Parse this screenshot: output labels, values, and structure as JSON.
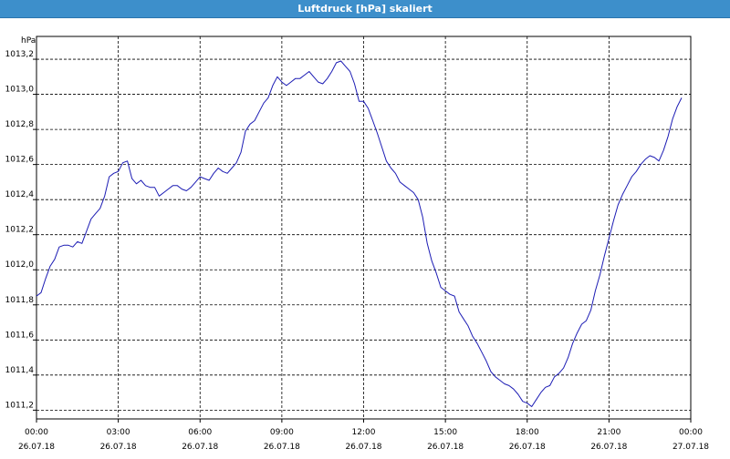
{
  "window": {
    "title": "Luftdruck [hPa] skaliert"
  },
  "colors": {
    "titlebar": "#3d8fcb",
    "line": "#1c1cb4",
    "grid": "#000000"
  },
  "chart_data": {
    "type": "line",
    "title": "Luftdruck [hPa] skaliert",
    "ylabel": "hPa",
    "xlabel": "",
    "grid": true,
    "legend": "none",
    "ylim": [
      1011.15,
      1013.33
    ],
    "xlim": [
      "26.07.18 00:00",
      "27.07.18 00:00"
    ],
    "yticks": [
      "1011,2",
      "1011,4",
      "1011,6",
      "1011,8",
      "1012,0",
      "1012,2",
      "1012,4",
      "1012,6",
      "1012,8",
      "1013,0",
      "1013,2"
    ],
    "xticks": [
      {
        "time": "00:00",
        "date": "26.07.18"
      },
      {
        "time": "03:00",
        "date": "26.07.18"
      },
      {
        "time": "06:00",
        "date": "26.07.18"
      },
      {
        "time": "09:00",
        "date": "26.07.18"
      },
      {
        "time": "12:00",
        "date": "26.07.18"
      },
      {
        "time": "15:00",
        "date": "26.07.18"
      },
      {
        "time": "18:00",
        "date": "26.07.18"
      },
      {
        "time": "21:00",
        "date": "26.07.18"
      },
      {
        "time": "00:00",
        "date": "27.07.18"
      }
    ],
    "series": [
      {
        "values": [
          [
            "00:00",
            1011.85
          ],
          [
            "00:10",
            1011.87
          ],
          [
            "00:20",
            1011.95
          ],
          [
            "00:30",
            1012.02
          ],
          [
            "00:40",
            1012.06
          ],
          [
            "00:50",
            1012.13
          ],
          [
            "01:00",
            1012.14
          ],
          [
            "01:10",
            1012.14
          ],
          [
            "01:20",
            1012.13
          ],
          [
            "01:30",
            1012.16
          ],
          [
            "01:40",
            1012.15
          ],
          [
            "01:50",
            1012.22
          ],
          [
            "02:00",
            1012.29
          ],
          [
            "02:10",
            1012.32
          ],
          [
            "02:20",
            1012.35
          ],
          [
            "02:30",
            1012.42
          ],
          [
            "02:40",
            1012.53
          ],
          [
            "02:50",
            1012.55
          ],
          [
            "03:00",
            1012.56
          ],
          [
            "03:10",
            1012.61
          ],
          [
            "03:20",
            1012.62
          ],
          [
            "03:30",
            1012.52
          ],
          [
            "03:40",
            1012.49
          ],
          [
            "03:50",
            1012.51
          ],
          [
            "04:00",
            1012.48
          ],
          [
            "04:10",
            1012.47
          ],
          [
            "04:20",
            1012.47
          ],
          [
            "04:30",
            1012.42
          ],
          [
            "04:40",
            1012.44
          ],
          [
            "04:50",
            1012.46
          ],
          [
            "05:00",
            1012.48
          ],
          [
            "05:10",
            1012.48
          ],
          [
            "05:20",
            1012.46
          ],
          [
            "05:30",
            1012.45
          ],
          [
            "05:40",
            1012.47
          ],
          [
            "05:50",
            1012.5
          ],
          [
            "06:00",
            1012.53
          ],
          [
            "06:10",
            1012.52
          ],
          [
            "06:20",
            1012.51
          ],
          [
            "06:30",
            1012.55
          ],
          [
            "06:40",
            1012.58
          ],
          [
            "06:50",
            1012.56
          ],
          [
            "07:00",
            1012.55
          ],
          [
            "07:10",
            1012.58
          ],
          [
            "07:20",
            1012.61
          ],
          [
            "07:30",
            1012.67
          ],
          [
            "07:40",
            1012.79
          ],
          [
            "07:50",
            1012.83
          ],
          [
            "08:00",
            1012.85
          ],
          [
            "08:10",
            1012.9
          ],
          [
            "08:20",
            1012.95
          ],
          [
            "08:30",
            1012.98
          ],
          [
            "08:40",
            1013.05
          ],
          [
            "08:50",
            1013.1
          ],
          [
            "09:00",
            1013.07
          ],
          [
            "09:10",
            1013.05
          ],
          [
            "09:20",
            1013.07
          ],
          [
            "09:30",
            1013.09
          ],
          [
            "09:40",
            1013.09
          ],
          [
            "09:50",
            1013.11
          ],
          [
            "10:00",
            1013.13
          ],
          [
            "10:10",
            1013.1
          ],
          [
            "10:20",
            1013.07
          ],
          [
            "10:30",
            1013.06
          ],
          [
            "10:40",
            1013.09
          ],
          [
            "10:50",
            1013.13
          ],
          [
            "11:00",
            1013.18
          ],
          [
            "11:10",
            1013.19
          ],
          [
            "11:20",
            1013.16
          ],
          [
            "11:30",
            1013.13
          ],
          [
            "11:40",
            1013.06
          ],
          [
            "11:50",
            1012.96
          ],
          [
            "12:00",
            1012.96
          ],
          [
            "12:10",
            1012.92
          ],
          [
            "12:20",
            1012.85
          ],
          [
            "12:30",
            1012.78
          ],
          [
            "12:40",
            1012.7
          ],
          [
            "12:50",
            1012.62
          ],
          [
            "13:00",
            1012.58
          ],
          [
            "13:10",
            1012.55
          ],
          [
            "13:20",
            1012.5
          ],
          [
            "13:30",
            1012.48
          ],
          [
            "13:40",
            1012.46
          ],
          [
            "13:50",
            1012.44
          ],
          [
            "14:00",
            1012.4
          ],
          [
            "14:10",
            1012.3
          ],
          [
            "14:20",
            1012.15
          ],
          [
            "14:30",
            1012.05
          ],
          [
            "14:40",
            1011.98
          ],
          [
            "14:50",
            1011.9
          ],
          [
            "15:00",
            1011.88
          ],
          [
            "15:10",
            1011.86
          ],
          [
            "15:20",
            1011.85
          ],
          [
            "15:30",
            1011.76
          ],
          [
            "15:40",
            1011.72
          ],
          [
            "15:50",
            1011.68
          ],
          [
            "16:00",
            1011.62
          ],
          [
            "16:10",
            1011.58
          ],
          [
            "16:20",
            1011.53
          ],
          [
            "16:30",
            1011.48
          ],
          [
            "16:40",
            1011.42
          ],
          [
            "16:50",
            1011.39
          ],
          [
            "17:00",
            1011.37
          ],
          [
            "17:10",
            1011.35
          ],
          [
            "17:20",
            1011.34
          ],
          [
            "17:30",
            1011.32
          ],
          [
            "17:40",
            1011.29
          ],
          [
            "17:50",
            1011.25
          ],
          [
            "18:00",
            1011.24
          ],
          [
            "18:10",
            1011.22
          ],
          [
            "18:20",
            1011.26
          ],
          [
            "18:30",
            1011.3
          ],
          [
            "18:40",
            1011.33
          ],
          [
            "18:50",
            1011.34
          ],
          [
            "19:00",
            1011.39
          ],
          [
            "19:10",
            1011.41
          ],
          [
            "19:20",
            1011.44
          ],
          [
            "19:30",
            1011.5
          ],
          [
            "19:40",
            1011.58
          ],
          [
            "19:50",
            1011.64
          ],
          [
            "20:00",
            1011.69
          ],
          [
            "20:10",
            1011.71
          ],
          [
            "20:20",
            1011.77
          ],
          [
            "20:30",
            1011.88
          ],
          [
            "20:40",
            1011.97
          ],
          [
            "20:50",
            1012.08
          ],
          [
            "21:00",
            1012.18
          ],
          [
            "21:10",
            1012.28
          ],
          [
            "21:20",
            1012.37
          ],
          [
            "21:30",
            1012.43
          ],
          [
            "21:40",
            1012.48
          ],
          [
            "21:50",
            1012.53
          ],
          [
            "22:00",
            1012.56
          ],
          [
            "22:10",
            1012.6
          ],
          [
            "22:20",
            1012.63
          ],
          [
            "22:30",
            1012.65
          ],
          [
            "22:40",
            1012.64
          ],
          [
            "22:50",
            1012.62
          ],
          [
            "23:00",
            1012.68
          ],
          [
            "23:10",
            1012.76
          ],
          [
            "23:20",
            1012.86
          ],
          [
            "23:30",
            1012.93
          ],
          [
            "23:40",
            1012.98
          ]
        ]
      }
    ]
  }
}
